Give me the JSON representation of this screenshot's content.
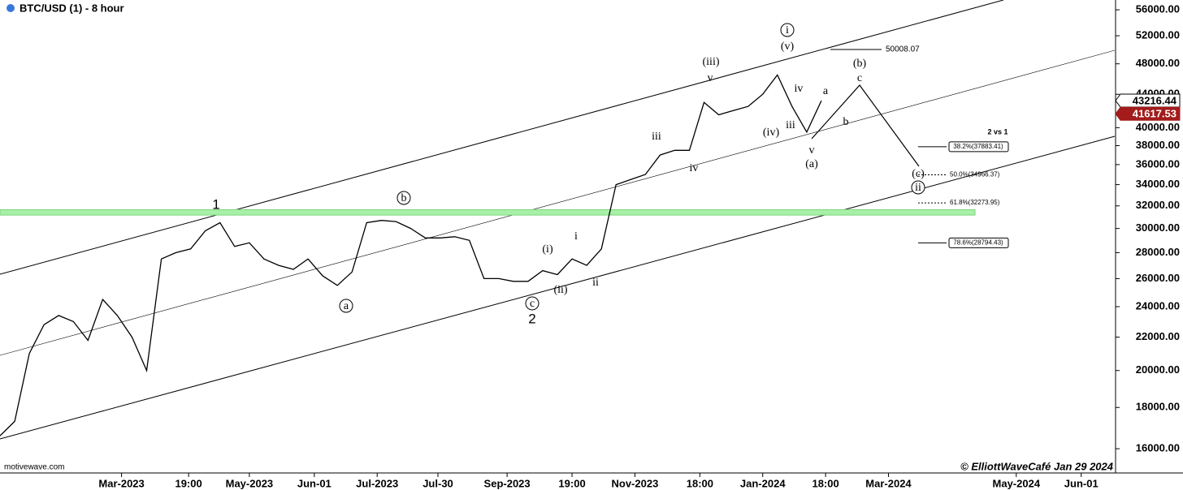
{
  "chart_data": {
    "type": "line",
    "title": "BTC/USD (1) - 8 hour",
    "source": "motivewave.com",
    "credit": "© ElliottWaveCafé Jan 29 2024",
    "log_scale": true,
    "xlim": [
      "2023-01-02",
      "2024-06-17"
    ],
    "ylim": [
      14930,
      57590
    ],
    "xticks": [
      {
        "value": "2023-03-01",
        "label": "Mar-2023"
      },
      {
        "value": "2023-04-02",
        "label": "19:00"
      },
      {
        "value": "2023-05-01",
        "label": "May-2023"
      },
      {
        "value": "2023-06-01",
        "label": "Jun-01"
      },
      {
        "value": "2023-07-01",
        "label": "Jul-2023"
      },
      {
        "value": "2023-07-30",
        "label": "Jul-30"
      },
      {
        "value": "2023-09-01",
        "label": "Sep-2023"
      },
      {
        "value": "2023-10-02",
        "label": "19:00"
      },
      {
        "value": "2023-11-01",
        "label": "Nov-2023"
      },
      {
        "value": "2023-12-02",
        "label": "18:00"
      },
      {
        "value": "2024-01-01",
        "label": "Jan-2024"
      },
      {
        "value": "2024-01-31",
        "label": "18:00"
      },
      {
        "value": "2024-03-01",
        "label": "Mar-2024"
      },
      {
        "value": "2024-05-01",
        "label": "May-2024"
      },
      {
        "value": "2024-06-01",
        "label": "Jun-01"
      }
    ],
    "yticks": [
      {
        "value": 16000,
        "label": "16000.00"
      },
      {
        "value": 18000,
        "label": "18000.00"
      },
      {
        "value": 20000,
        "label": "20000.00"
      },
      {
        "value": 22000,
        "label": "22000.00"
      },
      {
        "value": 24000,
        "label": "24000.00"
      },
      {
        "value": 26000,
        "label": "26000.00"
      },
      {
        "value": 28000,
        "label": "28000.00"
      },
      {
        "value": 30000,
        "label": "30000.00"
      },
      {
        "value": 32000,
        "label": "32000.00"
      },
      {
        "value": 34000,
        "label": "34000.00"
      },
      {
        "value": 36000,
        "label": "36000.00"
      },
      {
        "value": 38000,
        "label": "38000.00"
      },
      {
        "value": 40000,
        "label": "40000.00"
      },
      {
        "value": 44000,
        "label": "44000.00"
      },
      {
        "value": 48000,
        "label": "48000.00"
      },
      {
        "value": 52000,
        "label": "52000.00"
      },
      {
        "value": 56000,
        "label": "56000.00"
      }
    ],
    "x": [
      "2023-01-02",
      "2023-01-09",
      "2023-01-16",
      "2023-01-23",
      "2023-01-30",
      "2023-02-06",
      "2023-02-13",
      "2023-02-20",
      "2023-02-27",
      "2023-03-06",
      "2023-03-13",
      "2023-03-20",
      "2023-03-27",
      "2023-04-03",
      "2023-04-10",
      "2023-04-17",
      "2023-04-24",
      "2023-05-01",
      "2023-05-08",
      "2023-05-15",
      "2023-05-22",
      "2023-05-29",
      "2023-06-05",
      "2023-06-12",
      "2023-06-19",
      "2023-06-26",
      "2023-07-03",
      "2023-07-10",
      "2023-07-17",
      "2023-07-24",
      "2023-07-31",
      "2023-08-07",
      "2023-08-14",
      "2023-08-21",
      "2023-08-28",
      "2023-09-04",
      "2023-09-11",
      "2023-09-18",
      "2023-09-25",
      "2023-10-02",
      "2023-10-09",
      "2023-10-16",
      "2023-10-23",
      "2023-10-30",
      "2023-11-06",
      "2023-11-13",
      "2023-11-20",
      "2023-11-27",
      "2023-12-04",
      "2023-12-11",
      "2023-12-18",
      "2023-12-25",
      "2024-01-01",
      "2024-01-08",
      "2024-01-15",
      "2024-01-22",
      "2024-01-29"
    ],
    "series": [
      {
        "name": "BTC/USD",
        "color": "#000000",
        "values": [
          16600,
          17300,
          21000,
          22800,
          23400,
          23000,
          21800,
          24500,
          23400,
          22000,
          20000,
          27500,
          28000,
          28300,
          29800,
          30500,
          28500,
          28800,
          27500,
          27000,
          26700,
          27500,
          26200,
          25500,
          26500,
          30500,
          30700,
          30600,
          30000,
          29200,
          29200,
          29300,
          29000,
          26000,
          26000,
          25800,
          25800,
          26600,
          26300,
          27500,
          27000,
          28300,
          34000,
          34500,
          35000,
          37000,
          37500,
          37500,
          43000,
          41500,
          42000,
          42500,
          44000,
          46500,
          42500,
          39500,
          43200
        ]
      }
    ],
    "zone": {
      "range": [
        31170,
        31660
      ],
      "color": "#a8f0a8"
    },
    "price_tags": [
      {
        "value": 43216.44,
        "color": "#ffffff"
      },
      {
        "value": 41617.53,
        "color": "#a31b1b"
      }
    ],
    "level_note": {
      "value": 50008.07
    },
    "fib_title": "2 vs 1",
    "fib_levels": [
      {
        "value": 37883.41,
        "label": "38.2%(37883.41)",
        "style": "solid"
      },
      {
        "value": 34966.37,
        "label": "50.0%(34966.37)",
        "style": "dashed"
      },
      {
        "value": 32273.95,
        "label": "61.8%(32273.95)",
        "style": "dashed"
      },
      {
        "value": 28794.43,
        "label": "78.6%(28794.43)",
        "style": "solid"
      }
    ],
    "annotations": [
      {
        "text": "1",
        "circled": false
      },
      {
        "text": "b",
        "circled": true
      },
      {
        "text": "a",
        "circled": true
      },
      {
        "text": "c",
        "circled": true
      },
      {
        "text": "2",
        "circled": false
      },
      {
        "text": "(i)",
        "circled": false
      },
      {
        "text": "(ii)",
        "circled": false
      },
      {
        "text": "i",
        "circled": false
      },
      {
        "text": "ii",
        "circled": false
      },
      {
        "text": "iii",
        "circled": false
      },
      {
        "text": "iv",
        "circled": false
      },
      {
        "text": "v",
        "circled": false
      },
      {
        "text": "(iii)",
        "circled": false
      },
      {
        "text": "(iv)",
        "circled": false
      },
      {
        "text": "(v)",
        "circled": false
      },
      {
        "text": "i",
        "circled": true
      },
      {
        "text": "iv",
        "circled": false
      },
      {
        "text": "iii",
        "circled": false
      },
      {
        "text": "v",
        "circled": false
      },
      {
        "text": "(a)",
        "circled": false
      },
      {
        "text": "a",
        "circled": false
      },
      {
        "text": "b",
        "circled": false
      },
      {
        "text": "c",
        "circled": false
      },
      {
        "text": "(b)",
        "circled": false
      },
      {
        "text": "(c)",
        "circled": false
      },
      {
        "text": "ii",
        "circled": true
      }
    ]
  }
}
